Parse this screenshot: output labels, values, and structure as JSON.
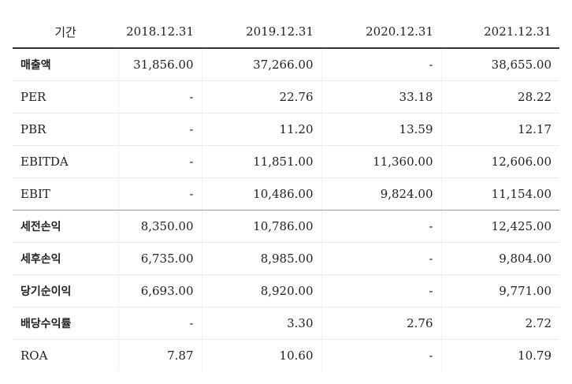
{
  "table": {
    "header": {
      "period_label": "기간",
      "columns": [
        "2018.12.31",
        "2019.12.31",
        "2020.12.31",
        "2021.12.31"
      ]
    },
    "rows": [
      {
        "label": "매출액",
        "values": [
          "31,856.00",
          "37,266.00",
          "-",
          "38,655.00"
        ]
      },
      {
        "label": "PER",
        "values": [
          "-",
          "22.76",
          "33.18",
          "28.22"
        ]
      },
      {
        "label": "PBR",
        "values": [
          "-",
          "11.20",
          "13.59",
          "12.17"
        ]
      },
      {
        "label": "EBITDA",
        "values": [
          "-",
          "11,851.00",
          "11,360.00",
          "12,606.00"
        ]
      },
      {
        "label": "EBIT",
        "values": [
          "-",
          "10,486.00",
          "9,824.00",
          "11,154.00"
        ]
      },
      {
        "label": "세전손익",
        "values": [
          "8,350.00",
          "10,786.00",
          "-",
          "12,425.00"
        ]
      },
      {
        "label": "세후손익",
        "values": [
          "6,735.00",
          "8,985.00",
          "-",
          "9,804.00"
        ]
      },
      {
        "label": "당기순이익",
        "values": [
          "6,693.00",
          "8,920.00",
          "-",
          "9,771.00"
        ]
      },
      {
        "label": "배당수익률",
        "values": [
          "-",
          "3.30",
          "2.76",
          "2.72"
        ]
      },
      {
        "label": "ROA",
        "values": [
          "7.87",
          "10.60",
          "-",
          "10.79"
        ]
      }
    ]
  }
}
